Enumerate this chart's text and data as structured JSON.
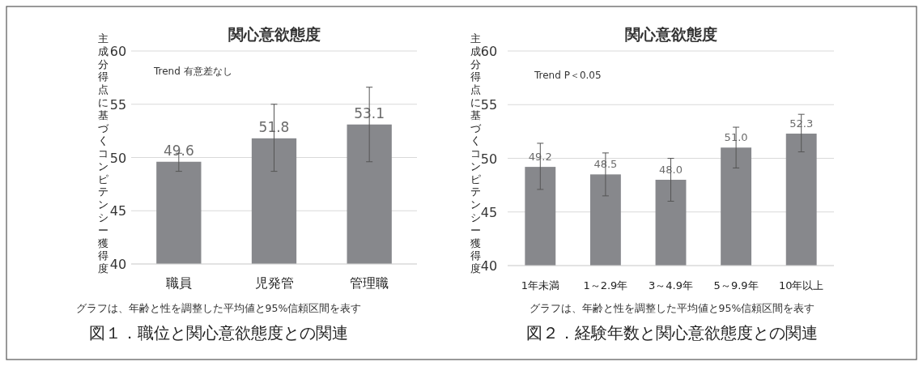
{
  "chart_data": [
    {
      "type": "bar",
      "title": "関心意欲態度",
      "ylabel": "主成分得点に基づくコンピテンシー獲得度",
      "categories": [
        "職員",
        "児発管",
        "管理職"
      ],
      "values": [
        49.6,
        51.8,
        53.1
      ],
      "color": "#87888c",
      "errors": [
        [
          48.7,
          50.4
        ],
        [
          48.7,
          55.0
        ],
        [
          49.6,
          56.6
        ]
      ],
      "ylim": [
        40,
        60
      ],
      "yticks": [
        40,
        45,
        50,
        55,
        60
      ],
      "grid": "y",
      "data_labels": true,
      "annotations": [
        "Trend 有意差なし",
        "グラフは、年齢と性を調整した平均値と95%信頼区間を表す",
        "図１．職位と関心意欲態度との関連"
      ]
    },
    {
      "type": "bar",
      "title": "関心意欲態度",
      "ylabel": "主成分得点に基づくコンピテンシー獲得度",
      "categories": [
        "1年未満",
        "1～2.9年",
        "3～4.9年",
        "5～9.9年",
        "10年以上"
      ],
      "values": [
        49.2,
        48.5,
        48.0,
        51.0,
        52.3
      ],
      "color": "#87888c",
      "errors": [
        [
          47.1,
          51.4
        ],
        [
          46.5,
          50.5
        ],
        [
          46.0,
          50.0
        ],
        [
          49.1,
          52.9
        ],
        [
          50.6,
          54.1
        ]
      ],
      "ylim": [
        40,
        60
      ],
      "yticks": [
        40,
        45,
        50,
        55,
        60
      ],
      "grid": "y",
      "value_labels": [
        "49.2",
        "48.5",
        "48.0",
        "51.0",
        "52.3"
      ],
      "annotations": [
        "Trend P＜0.05",
        "グラフは、年齢と性を調整した平均値と95%信頼区間を表す",
        "図２．経験年数と関心意欲態度との関連"
      ]
    }
  ]
}
